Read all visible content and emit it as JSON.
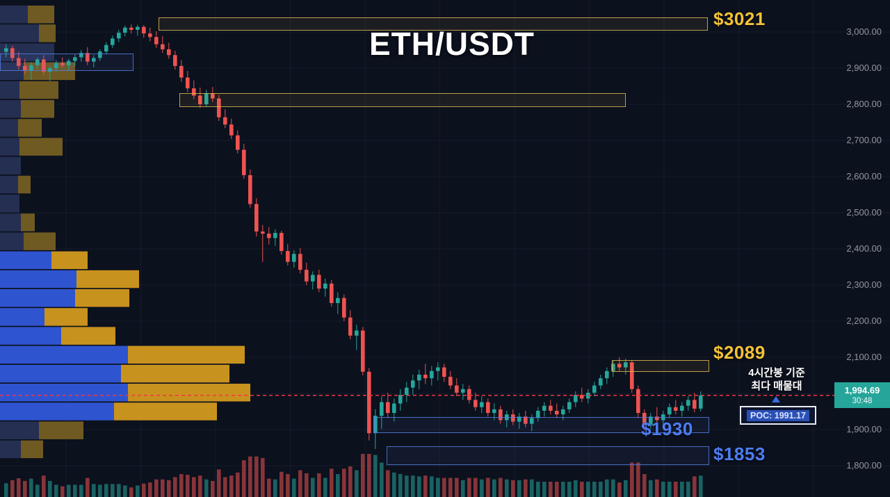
{
  "meta": {
    "symbol": "ETH/USDT"
  },
  "colors": {
    "background": "#0c111e",
    "grid": "rgba(140,160,210,0.07)",
    "candle_up": "#26a69a",
    "candle_down": "#ef5350",
    "vol_up": "rgba(38,166,154,0.55)",
    "vol_down": "rgba(239,83,80,0.55)",
    "axis_text": "#9196a1",
    "supply_accent": "#f3c235",
    "demand_accent": "#4d7df2",
    "profile_blue": "#2f54d0",
    "profile_orange": "#c8921e",
    "profile_blue_dim": "#252f52",
    "profile_orange_dim": "#6f5a22",
    "price_line": "#f23645",
    "badge_bg": "#26a69a"
  },
  "chart_data": {
    "type": "candlestick",
    "title": "ETH/USDT",
    "price_axis": [
      {
        "price": 3000,
        "label": "3,000.00"
      },
      {
        "price": 2900,
        "label": "2,900.00"
      },
      {
        "price": 2800,
        "label": "2,800.00"
      },
      {
        "price": 2700,
        "label": "2,700.00"
      },
      {
        "price": 2600,
        "label": "2,600.00"
      },
      {
        "price": 2500,
        "label": "2,500.00"
      },
      {
        "price": 2400,
        "label": "2,400.00"
      },
      {
        "price": 2300,
        "label": "2,300.00"
      },
      {
        "price": 2200,
        "label": "2,200.00"
      },
      {
        "price": 2100,
        "label": "2,100.00"
      },
      {
        "price": 2000,
        "label": ""
      },
      {
        "price": 1900,
        "label": "1,900.00"
      },
      {
        "price": 1800,
        "label": "1,800.00"
      }
    ],
    "current_price": {
      "value": 1994.69,
      "label": "1,994.69",
      "countdown": "30:48"
    },
    "annotations": {
      "note_line1": "4시간봉 기준",
      "note_line2": "최다 매물대",
      "poc_label": "POC: 1991.17"
    },
    "zones": [
      {
        "side": "supply",
        "label": "$3021",
        "price_top": 3040,
        "price_bottom": 3008
      },
      {
        "side": "supply",
        "label": "",
        "price_top": 2830,
        "price_bottom": 2795
      },
      {
        "side": "supply",
        "label": "$2089",
        "price_top": 2093,
        "price_bottom": 2063
      },
      {
        "side": "demand",
        "label": "$1930",
        "price_top": 1934,
        "price_bottom": 1893
      },
      {
        "side": "demand",
        "label": "$1853",
        "price_top": 1857,
        "price_bottom": 1805
      },
      {
        "side": "demand",
        "label": "",
        "price_top": 2940,
        "price_bottom": 2895
      }
    ],
    "volume_profile": {
      "rows": [
        {
          "blue": 40,
          "orange": 38,
          "dim": true
        },
        {
          "blue": 56,
          "orange": 24,
          "dim": true
        },
        {
          "blue": 78,
          "orange": 0,
          "dim": true
        },
        {
          "blue": 34,
          "orange": 74,
          "dim": true
        },
        {
          "blue": 28,
          "orange": 56,
          "dim": true
        },
        {
          "blue": 30,
          "orange": 48,
          "dim": true
        },
        {
          "blue": 26,
          "orange": 34,
          "dim": true
        },
        {
          "blue": 28,
          "orange": 62,
          "dim": true
        },
        {
          "blue": 30,
          "orange": 0,
          "dim": true
        },
        {
          "blue": 26,
          "orange": 18,
          "dim": true
        },
        {
          "blue": 28,
          "orange": 0,
          "dim": true
        },
        {
          "blue": 30,
          "orange": 20,
          "dim": true
        },
        {
          "blue": 34,
          "orange": 46,
          "dim": true
        },
        {
          "blue": 74,
          "orange": 52,
          "dim": false
        },
        {
          "blue": 110,
          "orange": 90,
          "dim": false
        },
        {
          "blue": 108,
          "orange": 78,
          "dim": false
        },
        {
          "blue": 64,
          "orange": 62,
          "dim": false
        },
        {
          "blue": 88,
          "orange": 78,
          "dim": false
        },
        {
          "blue": 184,
          "orange": 168,
          "dim": false
        },
        {
          "blue": 174,
          "orange": 156,
          "dim": false
        },
        {
          "blue": 184,
          "orange": 176,
          "dim": false
        },
        {
          "blue": 164,
          "orange": 148,
          "dim": false
        },
        {
          "blue": 56,
          "orange": 64,
          "dim": true
        },
        {
          "blue": 30,
          "orange": 32,
          "dim": true
        }
      ]
    },
    "candles": [
      [
        2945,
        2966,
        2930,
        2955
      ],
      [
        2955,
        2962,
        2918,
        2928
      ],
      [
        2928,
        2945,
        2896,
        2906
      ],
      [
        2906,
        2926,
        2884,
        2894
      ],
      [
        2894,
        2916,
        2868,
        2908
      ],
      [
        2908,
        2930,
        2898,
        2924
      ],
      [
        2924,
        2936,
        2880,
        2890
      ],
      [
        2890,
        2906,
        2864,
        2900
      ],
      [
        2900,
        2922,
        2890,
        2914
      ],
      [
        2914,
        2930,
        2902,
        2908
      ],
      [
        2908,
        2926,
        2894,
        2920
      ],
      [
        2920,
        2938,
        2906,
        2930
      ],
      [
        2930,
        2950,
        2918,
        2942
      ],
      [
        2942,
        2958,
        2908,
        2918
      ],
      [
        2918,
        2936,
        2902,
        2928
      ],
      [
        2928,
        2952,
        2920,
        2946
      ],
      [
        2946,
        2972,
        2938,
        2964
      ],
      [
        2964,
        2990,
        2956,
        2982
      ],
      [
        2982,
        3006,
        2972,
        2998
      ],
      [
        2998,
        3018,
        2988,
        3012
      ],
      [
        3012,
        3021,
        2996,
        3006
      ],
      [
        3006,
        3020,
        2990,
        3014
      ],
      [
        3014,
        3019,
        2984,
        2996
      ],
      [
        2996,
        3012,
        2974,
        2986
      ],
      [
        2986,
        3002,
        2956,
        2966
      ],
      [
        2966,
        2988,
        2942,
        2952
      ],
      [
        2952,
        2970,
        2926,
        2936
      ],
      [
        2936,
        2948,
        2896,
        2906
      ],
      [
        2906,
        2922,
        2862,
        2874
      ],
      [
        2874,
        2892,
        2834,
        2844
      ],
      [
        2844,
        2866,
        2814,
        2824
      ],
      [
        2824,
        2846,
        2790,
        2800
      ],
      [
        2800,
        2840,
        2794,
        2830
      ],
      [
        2830,
        2848,
        2806,
        2816
      ],
      [
        2816,
        2826,
        2754,
        2764
      ],
      [
        2764,
        2786,
        2734,
        2744
      ],
      [
        2744,
        2760,
        2704,
        2714
      ],
      [
        2714,
        2728,
        2664,
        2674
      ],
      [
        2674,
        2690,
        2594,
        2604
      ],
      [
        2604,
        2620,
        2514,
        2524
      ],
      [
        2524,
        2540,
        2434,
        2448
      ],
      [
        2448,
        2466,
        2364,
        2442
      ],
      [
        2442,
        2460,
        2412,
        2430
      ],
      [
        2430,
        2454,
        2408,
        2444
      ],
      [
        2444,
        2450,
        2384,
        2394
      ],
      [
        2394,
        2414,
        2354,
        2364
      ],
      [
        2364,
        2396,
        2348,
        2386
      ],
      [
        2386,
        2402,
        2332,
        2342
      ],
      [
        2342,
        2362,
        2300,
        2310
      ],
      [
        2310,
        2338,
        2288,
        2328
      ],
      [
        2328,
        2342,
        2280,
        2290
      ],
      [
        2290,
        2318,
        2268,
        2304
      ],
      [
        2304,
        2314,
        2240,
        2250
      ],
      [
        2250,
        2280,
        2220,
        2264
      ],
      [
        2264,
        2274,
        2200,
        2210
      ],
      [
        2210,
        2230,
        2150,
        2160
      ],
      [
        2160,
        2190,
        2120,
        2174
      ],
      [
        2174,
        2184,
        2050,
        2060
      ],
      [
        2060,
        2070,
        1870,
        1890
      ],
      [
        1890,
        1956,
        1846,
        1938
      ],
      [
        1938,
        1992,
        1902,
        1976
      ],
      [
        1976,
        2002,
        1932,
        1946
      ],
      [
        1946,
        1986,
        1922,
        1972
      ],
      [
        1972,
        2012,
        1952,
        1996
      ],
      [
        1996,
        2032,
        1976,
        2016
      ],
      [
        2016,
        2052,
        1996,
        2036
      ],
      [
        2036,
        2066,
        2012,
        2052
      ],
      [
        2052,
        2082,
        2026,
        2042
      ],
      [
        2042,
        2076,
        2022,
        2062
      ],
      [
        2062,
        2086,
        2036,
        2072
      ],
      [
        2072,
        2082,
        2032,
        2046
      ],
      [
        2046,
        2062,
        2012,
        2022
      ],
      [
        2022,
        2042,
        1992,
        2002
      ],
      [
        2002,
        2026,
        1982,
        2012
      ],
      [
        2012,
        2022,
        1972,
        1982
      ],
      [
        1982,
        2002,
        1952,
        1962
      ],
      [
        1962,
        1992,
        1946,
        1976
      ],
      [
        1976,
        1986,
        1936,
        1946
      ],
      [
        1946,
        1972,
        1926,
        1956
      ],
      [
        1956,
        1966,
        1916,
        1926
      ],
      [
        1926,
        1952,
        1906,
        1942
      ],
      [
        1942,
        1956,
        1912,
        1922
      ],
      [
        1922,
        1946,
        1902,
        1936
      ],
      [
        1936,
        1952,
        1906,
        1916
      ],
      [
        1916,
        1942,
        1896,
        1932
      ],
      [
        1932,
        1962,
        1922,
        1952
      ],
      [
        1952,
        1976,
        1936,
        1966
      ],
      [
        1966,
        1982,
        1942,
        1952
      ],
      [
        1952,
        1972,
        1932,
        1942
      ],
      [
        1942,
        1966,
        1926,
        1956
      ],
      [
        1956,
        1986,
        1946,
        1976
      ],
      [
        1976,
        2006,
        1962,
        1996
      ],
      [
        1996,
        2016,
        1976,
        1986
      ],
      [
        1986,
        2012,
        1972,
        2002
      ],
      [
        2002,
        2032,
        1992,
        2022
      ],
      [
        2022,
        2052,
        2012,
        2042
      ],
      [
        2042,
        2072,
        2026,
        2062
      ],
      [
        2062,
        2092,
        2046,
        2082
      ],
      [
        2082,
        2100,
        2062,
        2072
      ],
      [
        2072,
        2096,
        2052,
        2086
      ],
      [
        2086,
        2092,
        2002,
        2012
      ],
      [
        2012,
        2022,
        1932,
        1946
      ],
      [
        1946,
        1956,
        1896,
        1912
      ],
      [
        1912,
        1946,
        1902,
        1936
      ],
      [
        1936,
        1962,
        1916,
        1926
      ],
      [
        1926,
        1952,
        1912,
        1942
      ],
      [
        1942,
        1972,
        1932,
        1962
      ],
      [
        1962,
        1982,
        1942,
        1952
      ],
      [
        1952,
        1976,
        1936,
        1966
      ],
      [
        1966,
        1992,
        1952,
        1982
      ],
      [
        1982,
        2002,
        1948,
        1958
      ],
      [
        1958,
        2006,
        1950,
        1994.69
      ]
    ]
  }
}
